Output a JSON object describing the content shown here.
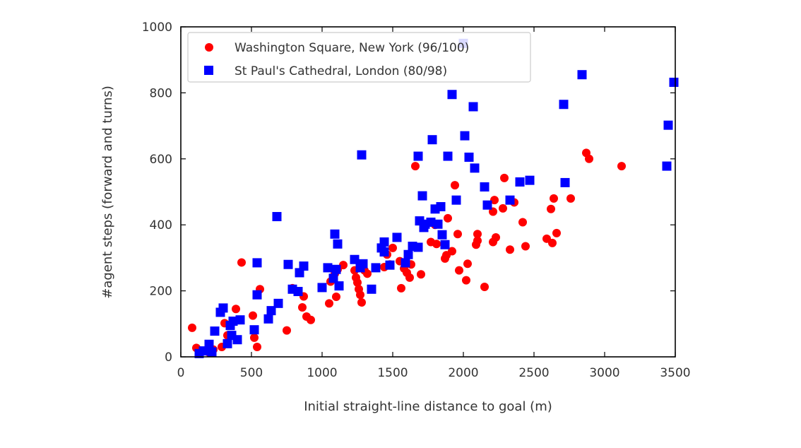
{
  "chart_data": {
    "type": "scatter",
    "title": "",
    "xlabel": "Initial straight-line distance to goal (m)",
    "ylabel": "#agent steps (forward and turns)",
    "xlim": [
      0,
      3500
    ],
    "ylim": [
      0,
      1000
    ],
    "xticks": [
      0,
      500,
      1000,
      1500,
      2000,
      2500,
      3000,
      3500
    ],
    "yticks": [
      0,
      200,
      400,
      600,
      800,
      1000
    ],
    "grid": false,
    "legend_position": "top-left",
    "series": [
      {
        "name": "Washington Square, New York (96/100)",
        "marker": "circle",
        "color": "#ff0000",
        "points": [
          [
            80,
            88
          ],
          [
            110,
            27
          ],
          [
            150,
            17
          ],
          [
            200,
            13
          ],
          [
            230,
            22
          ],
          [
            290,
            30
          ],
          [
            310,
            102
          ],
          [
            330,
            65
          ],
          [
            390,
            145
          ],
          [
            430,
            286
          ],
          [
            510,
            125
          ],
          [
            520,
            58
          ],
          [
            540,
            30
          ],
          [
            560,
            205
          ],
          [
            750,
            80
          ],
          [
            790,
            208
          ],
          [
            860,
            150
          ],
          [
            870,
            183
          ],
          [
            890,
            122
          ],
          [
            920,
            112
          ],
          [
            1050,
            162
          ],
          [
            1060,
            228
          ],
          [
            1090,
            252
          ],
          [
            1100,
            182
          ],
          [
            1110,
            265
          ],
          [
            1150,
            278
          ],
          [
            1230,
            262
          ],
          [
            1240,
            240
          ],
          [
            1250,
            225
          ],
          [
            1260,
            205
          ],
          [
            1270,
            188
          ],
          [
            1280,
            165
          ],
          [
            1300,
            262
          ],
          [
            1320,
            252
          ],
          [
            1440,
            272
          ],
          [
            1460,
            310
          ],
          [
            1480,
            280
          ],
          [
            1500,
            330
          ],
          [
            1550,
            290
          ],
          [
            1560,
            208
          ],
          [
            1580,
            268
          ],
          [
            1600,
            255
          ],
          [
            1620,
            240
          ],
          [
            1630,
            280
          ],
          [
            1660,
            578
          ],
          [
            1700,
            250
          ],
          [
            1770,
            348
          ],
          [
            1800,
            400
          ],
          [
            1810,
            342
          ],
          [
            1870,
            298
          ],
          [
            1880,
            308
          ],
          [
            1890,
            420
          ],
          [
            1920,
            320
          ],
          [
            1940,
            520
          ],
          [
            1960,
            372
          ],
          [
            1970,
            262
          ],
          [
            2020,
            232
          ],
          [
            2030,
            282
          ],
          [
            2090,
            340
          ],
          [
            2100,
            372
          ],
          [
            2100,
            352
          ],
          [
            2150,
            212
          ],
          [
            2210,
            348
          ],
          [
            2210,
            440
          ],
          [
            2220,
            475
          ],
          [
            2230,
            362
          ],
          [
            2280,
            450
          ],
          [
            2290,
            542
          ],
          [
            2330,
            325
          ],
          [
            2360,
            468
          ],
          [
            2420,
            408
          ],
          [
            2440,
            335
          ],
          [
            2590,
            358
          ],
          [
            2620,
            448
          ],
          [
            2630,
            345
          ],
          [
            2640,
            480
          ],
          [
            2660,
            375
          ],
          [
            2760,
            480
          ],
          [
            2870,
            618
          ],
          [
            2890,
            600
          ],
          [
            3120,
            578
          ]
        ]
      },
      {
        "name": "St Paul's Cathedral, London (80/98)",
        "marker": "square",
        "color": "#0000ff",
        "points": [
          [
            130,
            10
          ],
          [
            160,
            18
          ],
          [
            200,
            38
          ],
          [
            220,
            15
          ],
          [
            240,
            78
          ],
          [
            280,
            135
          ],
          [
            300,
            148
          ],
          [
            330,
            40
          ],
          [
            350,
            95
          ],
          [
            360,
            65
          ],
          [
            370,
            108
          ],
          [
            400,
            52
          ],
          [
            420,
            112
          ],
          [
            520,
            82
          ],
          [
            540,
            188
          ],
          [
            540,
            285
          ],
          [
            620,
            115
          ],
          [
            640,
            140
          ],
          [
            680,
            425
          ],
          [
            690,
            162
          ],
          [
            760,
            280
          ],
          [
            790,
            205
          ],
          [
            830,
            198
          ],
          [
            840,
            255
          ],
          [
            870,
            275
          ],
          [
            1000,
            210
          ],
          [
            1040,
            270
          ],
          [
            1080,
            238
          ],
          [
            1090,
            372
          ],
          [
            1100,
            265
          ],
          [
            1110,
            342
          ],
          [
            1120,
            215
          ],
          [
            1230,
            295
          ],
          [
            1270,
            270
          ],
          [
            1280,
            612
          ],
          [
            1290,
            282
          ],
          [
            1350,
            205
          ],
          [
            1380,
            270
          ],
          [
            1420,
            330
          ],
          [
            1440,
            348
          ],
          [
            1440,
            318
          ],
          [
            1480,
            278
          ],
          [
            1530,
            362
          ],
          [
            1590,
            285
          ],
          [
            1610,
            310
          ],
          [
            1640,
            335
          ],
          [
            1680,
            332
          ],
          [
            1680,
            608
          ],
          [
            1690,
            412
          ],
          [
            1710,
            488
          ],
          [
            1720,
            392
          ],
          [
            1730,
            402
          ],
          [
            1770,
            408
          ],
          [
            1780,
            658
          ],
          [
            1800,
            448
          ],
          [
            1820,
            402
          ],
          [
            1840,
            455
          ],
          [
            1850,
            370
          ],
          [
            1870,
            340
          ],
          [
            1890,
            608
          ],
          [
            1920,
            795
          ],
          [
            1950,
            475
          ],
          [
            2000,
            950
          ],
          [
            2010,
            670
          ],
          [
            2040,
            605
          ],
          [
            2070,
            758
          ],
          [
            2080,
            572
          ],
          [
            2150,
            515
          ],
          [
            2170,
            460
          ],
          [
            2330,
            475
          ],
          [
            2400,
            530
          ],
          [
            2470,
            535
          ],
          [
            2710,
            765
          ],
          [
            2720,
            528
          ],
          [
            2840,
            855
          ],
          [
            3440,
            578
          ],
          [
            3450,
            702
          ],
          [
            3490,
            832
          ]
        ]
      }
    ]
  }
}
